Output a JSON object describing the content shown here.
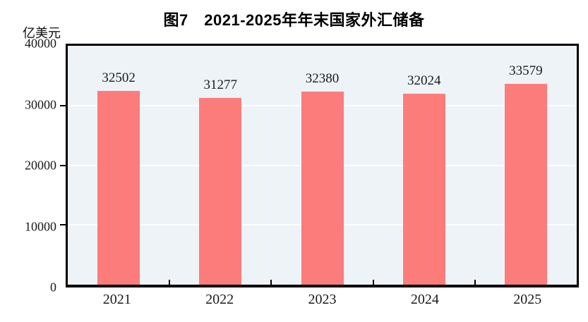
{
  "chart_data": {
    "type": "bar",
    "title": "图7　2021-2025年年末国家外汇储备",
    "ylabel": "亿美元",
    "xlabel": "",
    "categories": [
      "2021",
      "2022",
      "2023",
      "2024",
      "2025"
    ],
    "values": [
      32502,
      31277,
      32380,
      32024,
      33579
    ],
    "ylim": [
      0,
      40000
    ],
    "yticks": [
      0,
      10000,
      20000,
      30000,
      40000
    ],
    "grid": true,
    "gridlines_at": [
      10000,
      20000,
      30000
    ],
    "legend_position": "none",
    "bar_color": "#fc7c7c",
    "plot_background": "#edf3f7",
    "gridline_color": "#ffffff",
    "axis_color": "#000000"
  }
}
